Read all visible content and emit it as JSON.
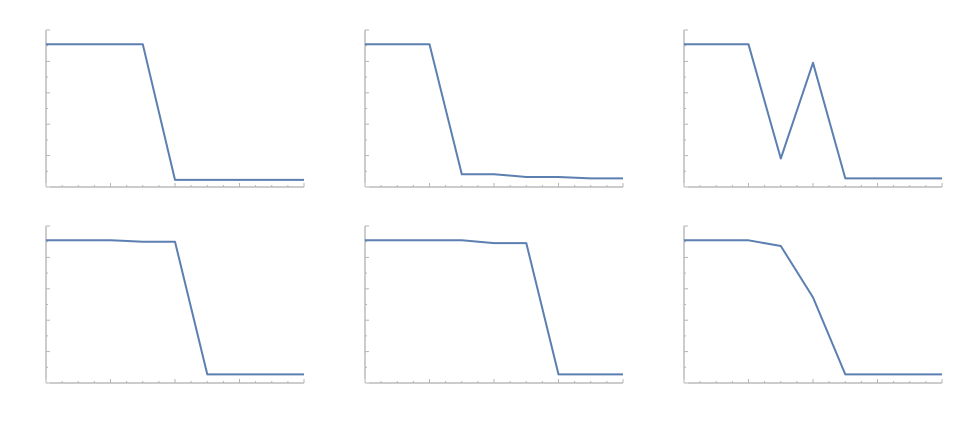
{
  "chart_data": [
    {
      "type": "line",
      "x": [
        0,
        1,
        2,
        3,
        4,
        5,
        6,
        7,
        8
      ],
      "series": [
        {
          "values": [
            1.0,
            1.0,
            1.0,
            1.0,
            0.05,
            0.05,
            0.05,
            0.05,
            0.05
          ]
        }
      ],
      "xlim": [
        0,
        8
      ],
      "ylim": [
        0,
        1.1
      ],
      "grid": false
    },
    {
      "type": "line",
      "x": [
        0,
        1,
        2,
        3,
        4,
        5,
        6,
        7,
        8
      ],
      "series": [
        {
          "values": [
            1.0,
            1.0,
            1.0,
            0.09,
            0.09,
            0.07,
            0.07,
            0.06,
            0.06
          ]
        }
      ],
      "xlim": [
        0,
        8
      ],
      "ylim": [
        0,
        1.1
      ],
      "grid": false
    },
    {
      "type": "line",
      "x": [
        0,
        1,
        2,
        3,
        4,
        5,
        6,
        7,
        8
      ],
      "series": [
        {
          "values": [
            1.0,
            1.0,
            1.0,
            0.2,
            0.87,
            0.06,
            0.06,
            0.06,
            0.06
          ]
        }
      ],
      "xlim": [
        0,
        8
      ],
      "ylim": [
        0,
        1.1
      ],
      "grid": false
    },
    {
      "type": "line",
      "x": [
        0,
        1,
        2,
        3,
        4,
        5,
        6,
        7,
        8
      ],
      "series": [
        {
          "values": [
            1.0,
            1.0,
            1.0,
            0.99,
            0.99,
            0.06,
            0.06,
            0.06,
            0.06
          ]
        }
      ],
      "xlim": [
        0,
        8
      ],
      "ylim": [
        0,
        1.1
      ],
      "grid": false
    },
    {
      "type": "line",
      "x": [
        0,
        1,
        2,
        3,
        4,
        5,
        6,
        7,
        8
      ],
      "series": [
        {
          "values": [
            1.0,
            1.0,
            1.0,
            1.0,
            0.98,
            0.98,
            0.06,
            0.06,
            0.06
          ]
        }
      ],
      "xlim": [
        0,
        8
      ],
      "ylim": [
        0,
        1.1
      ],
      "grid": false
    },
    {
      "type": "line",
      "x": [
        0,
        1,
        2,
        3,
        4,
        5,
        6,
        7,
        8
      ],
      "series": [
        {
          "values": [
            1.0,
            1.0,
            1.0,
            0.96,
            0.6,
            0.06,
            0.06,
            0.06,
            0.06
          ]
        }
      ],
      "xlim": [
        0,
        8
      ],
      "ylim": [
        0,
        1.1
      ],
      "grid": false
    }
  ],
  "colors": {
    "line": "#5b7fb1",
    "axis": "#9a9a9a"
  }
}
